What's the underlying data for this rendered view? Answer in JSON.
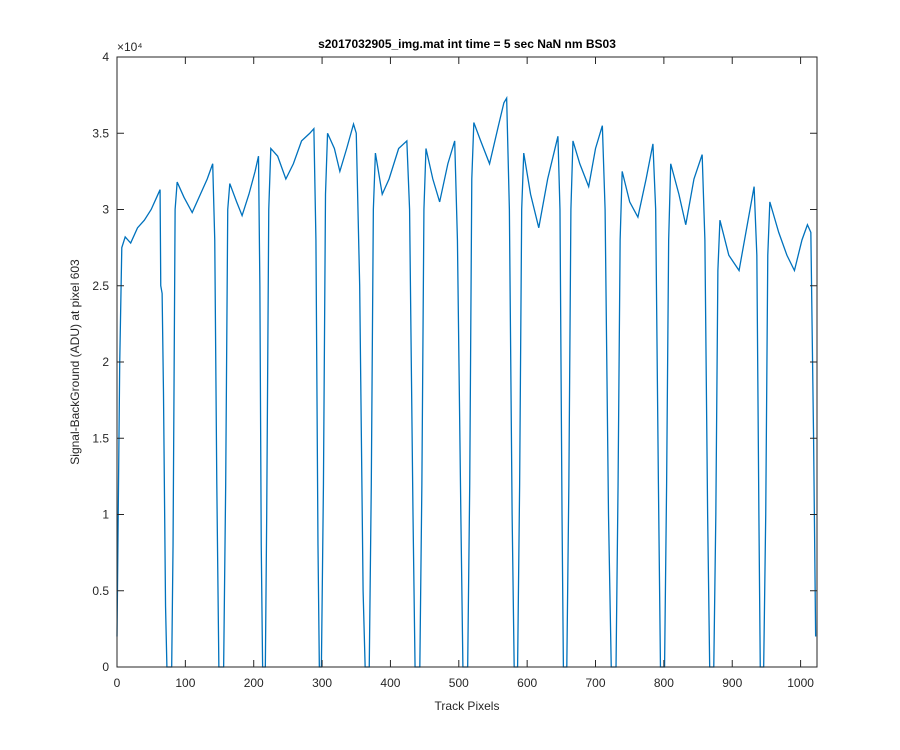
{
  "chart_data": {
    "type": "line",
    "title": "s2017032905_img.mat int time = 5 sec  NaN nm BS03",
    "xlabel": "Track Pixels",
    "ylabel": "Signal-BackGround (ADU) at pixel 603",
    "y_exponent": "×10⁴",
    "color": "#0072bd",
    "xlim": [
      0,
      1024
    ],
    "ylim": [
      0,
      40000
    ],
    "xticks": [
      0,
      100,
      200,
      300,
      400,
      500,
      600,
      700,
      800,
      900,
      1000
    ],
    "yticks": [
      0,
      {
        "value": 5000,
        "label": "0.5"
      },
      {
        "value": 10000,
        "label": "1"
      },
      {
        "value": 15000,
        "label": "1.5"
      },
      {
        "value": 20000,
        "label": "2"
      },
      {
        "value": 25000,
        "label": "2.5"
      },
      {
        "value": 30000,
        "label": "3"
      },
      {
        "value": 35000,
        "label": "3.5"
      },
      {
        "value": 40000,
        "label": "4"
      }
    ],
    "x": [
      0,
      4,
      7,
      12,
      20,
      30,
      40,
      50,
      58,
      63,
      64,
      66,
      68,
      71,
      73,
      80,
      82,
      85,
      88,
      98,
      110,
      122,
      132,
      140,
      143,
      146,
      149,
      156,
      159,
      162,
      165,
      175,
      183,
      193,
      202,
      207,
      209,
      211,
      213,
      217,
      219,
      222,
      225,
      235,
      247,
      258,
      270,
      282,
      288,
      291,
      294,
      296,
      299,
      302,
      305,
      308,
      318,
      326,
      336,
      346,
      350,
      355,
      360,
      363,
      369,
      372,
      375,
      378,
      388,
      398,
      412,
      424,
      428,
      433,
      436,
      443,
      446,
      449,
      452,
      462,
      472,
      484,
      494,
      498,
      503,
      506,
      513,
      516,
      519,
      522,
      532,
      545,
      558,
      566,
      570,
      574,
      578,
      581,
      586,
      589,
      592,
      595,
      605,
      617,
      630,
      645,
      648,
      651,
      653,
      658,
      661,
      664,
      667,
      677,
      690,
      700,
      710,
      714,
      719,
      723,
      730,
      733,
      736,
      739,
      750,
      762,
      774,
      784,
      788,
      792,
      795,
      801,
      804,
      807,
      810,
      822,
      832,
      844,
      856,
      860,
      864,
      867,
      873,
      876,
      879,
      882,
      895,
      910,
      922,
      932,
      936,
      939,
      941,
      946,
      949,
      952,
      955,
      968,
      980,
      991,
      1002,
      1010,
      1015,
      1019,
      1022
    ],
    "values": [
      2000,
      20000,
      27500,
      28200,
      27800,
      28800,
      29300,
      30000,
      30800,
      31300,
      25000,
      24500,
      18000,
      4000,
      0,
      0,
      8000,
      30000,
      31800,
      30800,
      29800,
      31000,
      32000,
      33000,
      28000,
      12000,
      0,
      0,
      12000,
      30000,
      31700,
      30500,
      29600,
      31000,
      32500,
      33500,
      25000,
      8000,
      0,
      0,
      10000,
      30000,
      34000,
      33500,
      32000,
      33000,
      34500,
      35000,
      35300,
      28000,
      8000,
      0,
      0,
      12000,
      31000,
      35000,
      34000,
      32500,
      34000,
      35600,
      35000,
      25000,
      5000,
      0,
      0,
      12000,
      30000,
      33700,
      31000,
      32000,
      34000,
      34500,
      30000,
      10000,
      0,
      0,
      12000,
      30000,
      34000,
      32000,
      30500,
      33000,
      34500,
      28000,
      10000,
      0,
      0,
      12000,
      32000,
      35700,
      34500,
      33000,
      35500,
      37000,
      37300,
      30000,
      10000,
      0,
      0,
      12000,
      30000,
      33700,
      31000,
      28800,
      32000,
      34800,
      30000,
      10000,
      0,
      0,
      12000,
      30000,
      34500,
      33000,
      31500,
      34000,
      35500,
      30000,
      10000,
      0,
      0,
      12000,
      28000,
      32500,
      30500,
      29500,
      32000,
      34300,
      30000,
      12000,
      0,
      0,
      12000,
      28000,
      33000,
      31000,
      29000,
      32000,
      33600,
      28000,
      10000,
      0,
      0,
      10000,
      26000,
      29300,
      27000,
      26000,
      29000,
      31500,
      27000,
      10000,
      0,
      0,
      10000,
      27000,
      30500,
      28500,
      27000,
      26000,
      28000,
      29000,
      28500,
      15000,
      2000
    ]
  }
}
